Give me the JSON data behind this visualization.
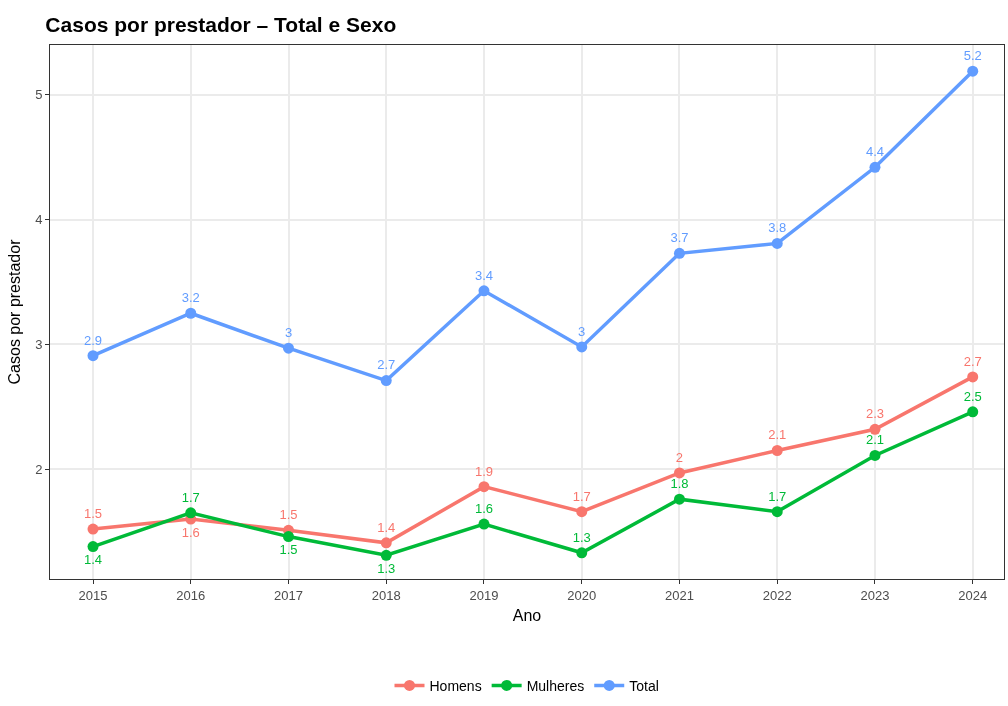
{
  "chart_data": {
    "type": "line",
    "title": "Casos por prestador – Total e Sexo",
    "xlabel": "Ano",
    "ylabel": "Casos por prestador",
    "x": [
      2015,
      2016,
      2017,
      2018,
      2019,
      2020,
      2021,
      2022,
      2023,
      2024
    ],
    "series": [
      {
        "name": "Homens",
        "color": "#f8766d",
        "values": [
          1.52,
          1.6,
          1.51,
          1.41,
          1.86,
          1.66,
          1.97,
          2.15,
          2.32,
          2.74
        ],
        "value_labels": [
          "1.5",
          "1.6",
          "1.5",
          "1.4",
          "1.9",
          "1.7",
          "2",
          "2.1",
          "2.3",
          "2.7"
        ]
      },
      {
        "name": "Mulheres",
        "color": "#00ba38",
        "values": [
          1.38,
          1.65,
          1.46,
          1.31,
          1.56,
          1.33,
          1.76,
          1.66,
          2.11,
          2.46
        ],
        "value_labels": [
          "1.4",
          "1.7",
          "1.5",
          "1.3",
          "1.6",
          "1.3",
          "1.8",
          "1.7",
          "2.1",
          "2.5"
        ]
      },
      {
        "name": "Total",
        "color": "#619cff",
        "values": [
          2.91,
          3.25,
          2.97,
          2.71,
          3.43,
          2.98,
          3.73,
          3.81,
          4.42,
          5.19
        ],
        "value_labels": [
          "2.9",
          "3.2",
          "3",
          "2.7",
          "3.4",
          "3",
          "3.7",
          "3.8",
          "4.4",
          "5.2"
        ]
      }
    ],
    "xlim": [
      2014.56,
      2024.32
    ],
    "xticks": [
      2015,
      2016,
      2017,
      2018,
      2019,
      2020,
      2021,
      2022,
      2023,
      2024
    ],
    "ylim": [
      1.12,
      5.4
    ],
    "yticks": [
      2,
      3,
      4,
      5
    ],
    "grid": true,
    "legend": "bottom",
    "marker": "circle",
    "line_style": "solid"
  }
}
